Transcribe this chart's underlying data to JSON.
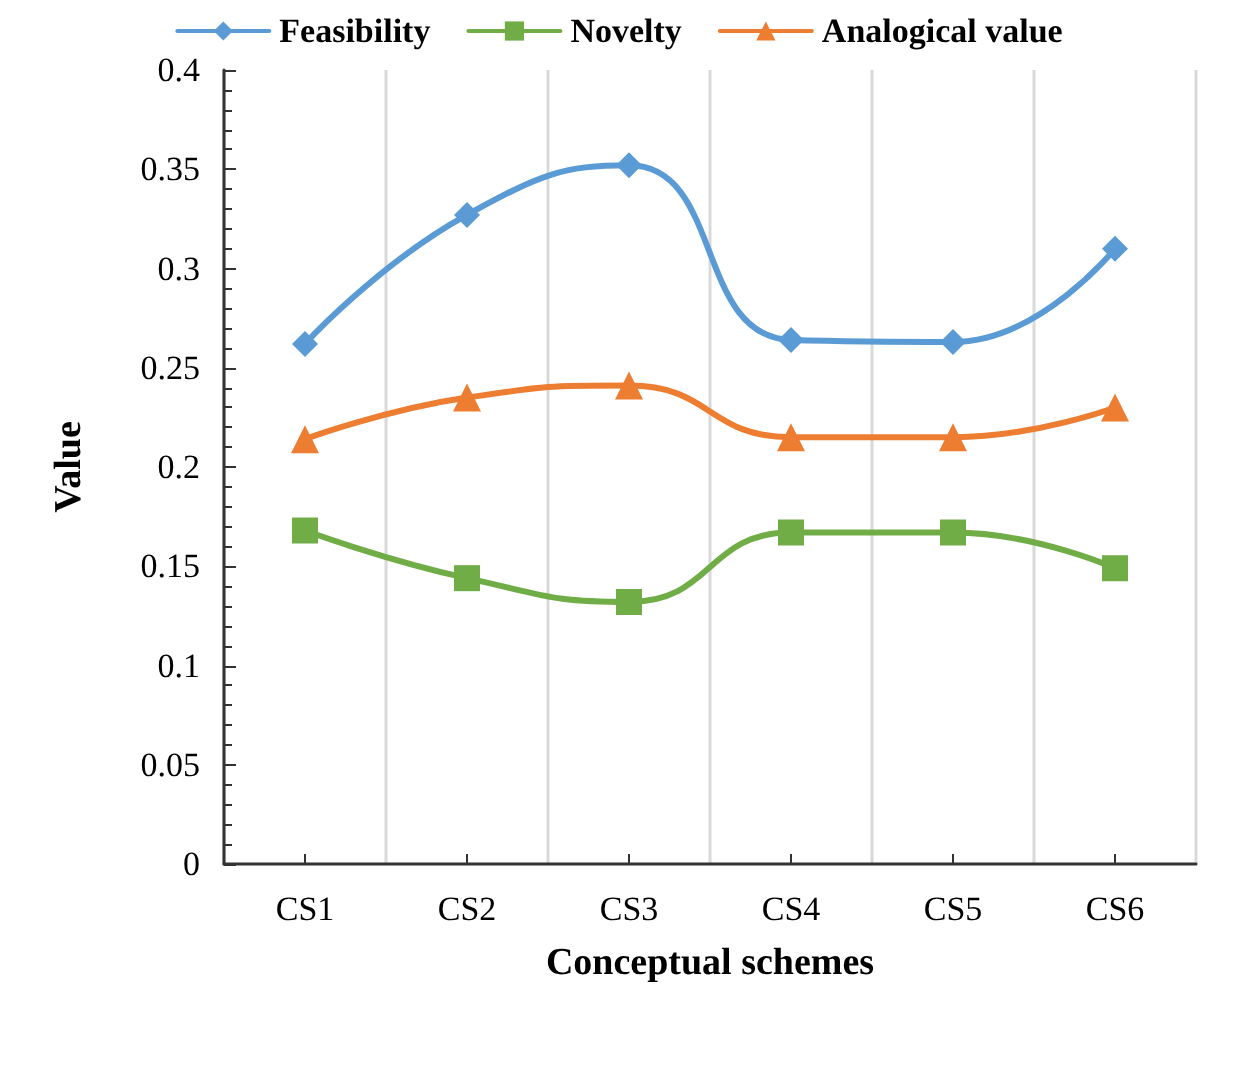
{
  "chart_data": {
    "type": "line",
    "xlabel": "Conceptual schemes",
    "ylabel": "Value",
    "categories": [
      "CS1",
      "CS2",
      "CS3",
      "CS4",
      "CS5",
      "CS6"
    ],
    "series": [
      {
        "name": "Feasibility",
        "color": "#5b9bd5",
        "marker": "diamond",
        "values": [
          0.262,
          0.327,
          0.352,
          0.264,
          0.263,
          0.31
        ]
      },
      {
        "name": "Novelty",
        "color": "#70ad47",
        "marker": "square",
        "values": [
          0.168,
          0.144,
          0.132,
          0.167,
          0.167,
          0.149
        ]
      },
      {
        "name": "Analogical value",
        "color": "#ed7d31",
        "marker": "triangle",
        "values": [
          0.214,
          0.235,
          0.241,
          0.215,
          0.215,
          0.23
        ]
      }
    ],
    "ylim": [
      0,
      0.4
    ],
    "yticks": [
      0,
      0.05,
      0.1,
      0.15,
      0.2,
      0.25,
      0.3,
      0.35,
      0.4
    ],
    "grid": "x",
    "legend": "top"
  }
}
